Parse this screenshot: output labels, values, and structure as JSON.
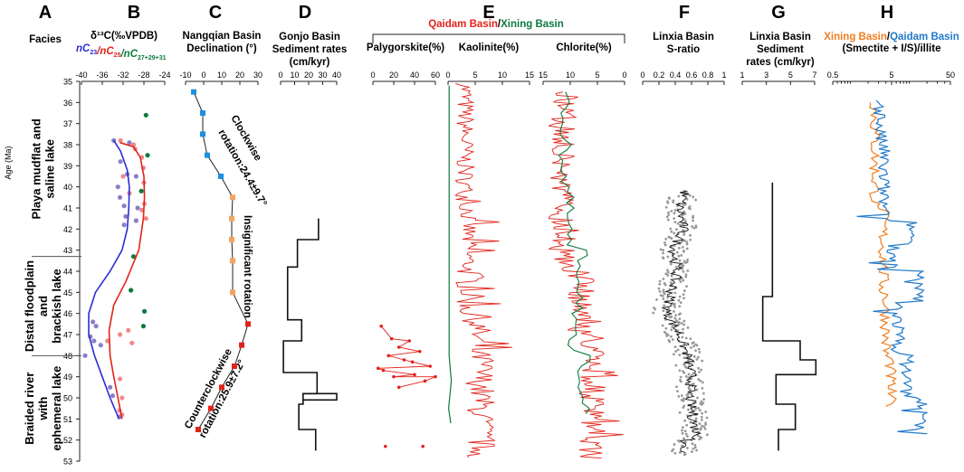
{
  "colors": {
    "blue": "#2b2bd6",
    "red": "#e2231a",
    "green": "#0c7a3c",
    "orange": "#f07d1e",
    "lightblue": "#1f78c8",
    "purple": "#8b7ec8",
    "pink": "#ef8a8a",
    "sqblue": "#1e90e0",
    "sqorange": "#f4a460",
    "sqred": "#e2231a",
    "gray": "#999999"
  },
  "panel_letters": [
    "A",
    "B",
    "C",
    "D",
    "E",
    "F",
    "G",
    "H"
  ],
  "age_axis": {
    "label": "Age (Ma)",
    "min": 35,
    "max": 53,
    "ticks": [
      35,
      36,
      37,
      38,
      39,
      40,
      41,
      42,
      43,
      44,
      45,
      46,
      47,
      48,
      49,
      50,
      51,
      52,
      53
    ]
  },
  "facies": {
    "title": "Facies",
    "zones": [
      {
        "top": 35,
        "bottom": 43.3,
        "lines": [
          "Playa mudflat and",
          "saline lake"
        ]
      },
      {
        "top": 43.3,
        "bottom": 48,
        "lines": [
          "Distal floodplain",
          "and",
          "brackish lake"
        ]
      },
      {
        "top": 48,
        "bottom": 53,
        "lines": [
          "Braided river",
          "with",
          "ephemeral lake"
        ]
      }
    ]
  },
  "chart_data": [
    {
      "id": "B",
      "type": "scatter",
      "title": "δ¹³C(‰VPDB)",
      "legend": [
        {
          "text": "nC",
          "sub": "23",
          "color": "blue"
        },
        {
          "text": "/nC",
          "sub": "25",
          "color": "red"
        },
        {
          "text": "/nC",
          "sub": "27+29+31",
          "color": "green"
        }
      ],
      "xlim": [
        -40,
        -24
      ],
      "xticks": [
        -40,
        -36,
        -32,
        -28,
        -24
      ],
      "series": [
        {
          "name": "nC23 points",
          "color": "purple",
          "points": [
            [
              -33.8,
              37.8
            ],
            [
              -30.8,
              37.9
            ],
            [
              -32.5,
              38.8
            ],
            [
              -31.2,
              39.4
            ],
            [
              -29.5,
              39.5
            ],
            [
              -33,
              40
            ],
            [
              -32.6,
              40.5
            ],
            [
              -31.8,
              40.9
            ],
            [
              -29.2,
              41
            ],
            [
              -31.5,
              41.4
            ],
            [
              -29.5,
              41.6
            ],
            [
              -31.8,
              41.8
            ],
            [
              -37.8,
              46.4
            ],
            [
              -37.2,
              46.6
            ],
            [
              -38.3,
              47.1
            ],
            [
              -37.6,
              47.3
            ],
            [
              -36.3,
              47.5
            ],
            [
              -39.3,
              48
            ],
            [
              -34.5,
              49.5
            ],
            [
              -34,
              49.9
            ],
            [
              -32.7,
              50.9
            ]
          ]
        },
        {
          "name": "nC25 points",
          "color": "pink",
          "points": [
            [
              -32.5,
              37.8
            ],
            [
              -30,
              38
            ],
            [
              -29.7,
              38.2
            ],
            [
              -28.4,
              38.6
            ],
            [
              -28.1,
              39.1
            ],
            [
              -32,
              39.5
            ],
            [
              -28,
              39.8
            ],
            [
              -30.8,
              40.3
            ],
            [
              -27.9,
              40.8
            ],
            [
              -28.4,
              41.1
            ],
            [
              -27.6,
              41.5
            ],
            [
              -31,
              46.8
            ],
            [
              -32.6,
              47
            ],
            [
              -35,
              47.3
            ],
            [
              -30.3,
              47.4
            ],
            [
              -32.6,
              49.1
            ],
            [
              -32.2,
              50
            ],
            [
              -32.7,
              50.6
            ],
            [
              -32.2,
              50.8
            ]
          ]
        },
        {
          "name": "nC27+29+31 points",
          "color": "green",
          "points": [
            [
              -27.6,
              36.6
            ],
            [
              -27.3,
              38.5
            ],
            [
              -28.5,
              40.2
            ],
            [
              -30,
              43.3
            ],
            [
              -30.5,
              44.9
            ],
            [
              -27.9,
              45.9
            ],
            [
              -28.1,
              46.6
            ]
          ]
        },
        {
          "name": "nC23 trend",
          "color": "blue",
          "line": [
            [
              -33.8,
              37.8
            ],
            [
              -32.5,
              38.3
            ],
            [
              -31.2,
              39.2
            ],
            [
              -30.8,
              40
            ],
            [
              -30.9,
              41
            ],
            [
              -31.2,
              42
            ],
            [
              -32.2,
              43
            ],
            [
              -34.5,
              44
            ],
            [
              -37.3,
              45
            ],
            [
              -38.6,
              46
            ],
            [
              -38.6,
              47
            ],
            [
              -37.5,
              48
            ],
            [
              -36,
              49
            ],
            [
              -34.5,
              50
            ],
            [
              -32.8,
              51
            ]
          ]
        },
        {
          "name": "nC25 trend",
          "color": "red",
          "line": [
            [
              -32.6,
              37.9
            ],
            [
              -30,
              38.1
            ],
            [
              -28.7,
              38.6
            ],
            [
              -28,
              39.5
            ],
            [
              -27.9,
              40.5
            ],
            [
              -28.1,
              41.5
            ],
            [
              -29,
              43
            ],
            [
              -31.5,
              44.5
            ],
            [
              -33.8,
              45.6
            ],
            [
              -34.7,
              46.8
            ],
            [
              -34.5,
              48
            ],
            [
              -33.8,
              49
            ],
            [
              -33,
              50
            ],
            [
              -32.2,
              51
            ]
          ]
        }
      ]
    },
    {
      "id": "C",
      "type": "line",
      "title_lines": [
        "Nangqian Basin",
        "Declination (°)"
      ],
      "xlim": [
        -10,
        30
      ],
      "xticks": [
        -10,
        0,
        10,
        20,
        30
      ],
      "annotations": [
        "Clockwise",
        "rotation:24.4±9.7°",
        "Insignificant rotation",
        "Counterclockwise",
        "rotation:25.9±7.2°"
      ],
      "points": [
        [
          -5.5,
          35.5,
          "sqblue"
        ],
        [
          -0.5,
          36.5,
          "sqblue"
        ],
        [
          -0.5,
          37.5,
          "sqblue"
        ],
        [
          2,
          38.5,
          "sqblue"
        ],
        [
          9.5,
          39.5,
          "sqblue"
        ],
        [
          16,
          40.5,
          "sqorange"
        ],
        [
          15.5,
          41.5,
          "sqorange"
        ],
        [
          15.5,
          42.5,
          "sqorange"
        ],
        [
          16,
          43.5,
          "sqorange"
        ],
        [
          16,
          45,
          "sqorange"
        ],
        [
          24.5,
          46.5,
          "sqred"
        ],
        [
          21,
          47.5,
          "sqred"
        ],
        [
          17,
          48.5,
          "sqred"
        ],
        [
          10,
          49.5,
          "sqred"
        ],
        [
          4,
          50.5,
          "sqred"
        ],
        [
          -3,
          51.5,
          "sqred"
        ]
      ]
    },
    {
      "id": "D",
      "type": "step",
      "title_lines": [
        "Gonjo Basin",
        "Sediment rates",
        "(cm/kyr)"
      ],
      "xlim": [
        0,
        40
      ],
      "xticks": [
        0,
        10,
        20,
        30,
        40
      ],
      "steps": [
        [
          41.5,
          42.5,
          27
        ],
        [
          42.5,
          43.8,
          12
        ],
        [
          43.8,
          46.3,
          5
        ],
        [
          46.3,
          47.3,
          15
        ],
        [
          47.3,
          48.8,
          2
        ],
        [
          48.8,
          49.8,
          26
        ],
        [
          49.8,
          50.3,
          16
        ],
        [
          50.3,
          51.5,
          13
        ],
        [
          51.5,
          52.5,
          25
        ]
      ],
      "spike": {
        "x": 40,
        "y_top": 49.8,
        "y_bottom": 50.1
      }
    },
    {
      "id": "E",
      "type": "line",
      "title": "Qaidam Basin/Xining Basin",
      "palygorskite": {
        "title": "Palygorskite(%)",
        "xlim": [
          0,
          60
        ],
        "xticks": [
          0,
          20,
          40,
          60
        ],
        "points": [
          [
            8,
            46.6
          ],
          [
            18,
            47.2
          ],
          [
            35,
            47.3
          ],
          [
            25,
            47.6
          ],
          [
            45,
            47.8
          ],
          [
            15,
            48
          ],
          [
            30,
            48.2
          ],
          [
            55,
            48.5
          ],
          [
            10,
            48.7
          ],
          [
            40,
            48.9
          ],
          [
            20,
            49
          ],
          [
            50,
            49.2
          ],
          [
            60,
            49
          ],
          [
            5,
            48.6
          ],
          [
            25,
            49.5
          ],
          [
            38,
            48.3
          ],
          [
            12,
            52.3
          ],
          [
            48,
            52.3
          ]
        ]
      },
      "kaolinite": {
        "title": "Kaolinite(%)",
        "xlim": [
          0,
          15
        ],
        "xticks": [
          0,
          5,
          10,
          15
        ],
        "xi_flat": 0.2
      },
      "chlorite": {
        "title": "Chlorite(%)",
        "xlim": [
          15,
          0
        ],
        "xticks": [
          15,
          10,
          5,
          0
        ]
      }
    },
    {
      "id": "F",
      "type": "scatter",
      "title_lines": [
        "Linxia Basin",
        "S-ratio"
      ],
      "xlim": [
        0,
        1
      ],
      "xticks": [
        0,
        0.2,
        0.4,
        0.6,
        0.8,
        1
      ],
      "xticklabels": [
        "0",
        "0.2",
        "0.4",
        "0.6",
        "0.8",
        "1"
      ],
      "trend": [
        [
          0.52,
          40.2
        ],
        [
          0.45,
          41
        ],
        [
          0.5,
          42
        ],
        [
          0.38,
          43
        ],
        [
          0.42,
          44
        ],
        [
          0.35,
          45
        ],
        [
          0.3,
          46
        ],
        [
          0.45,
          47
        ],
        [
          0.55,
          48
        ],
        [
          0.6,
          49
        ],
        [
          0.58,
          50
        ],
        [
          0.62,
          51
        ],
        [
          0.68,
          52
        ]
      ]
    },
    {
      "id": "G",
      "type": "step",
      "title_lines": [
        "Linxia Basin",
        "Sediment",
        "rates (cm/kyr)"
      ],
      "xlim": [
        1,
        7
      ],
      "xticks": [
        1,
        3,
        5,
        7
      ],
      "steps": [
        [
          39.8,
          45.2,
          3.5
        ],
        [
          45.2,
          47.3,
          2.7
        ],
        [
          47.3,
          48.2,
          5.8
        ],
        [
          48.2,
          48.9,
          7.1
        ],
        [
          48.9,
          50.3,
          3.8
        ],
        [
          50.3,
          51.5,
          5.4
        ],
        [
          51.5,
          52.5,
          4.0
        ]
      ]
    },
    {
      "id": "H",
      "type": "line",
      "title_parts": [
        {
          "text": "Xining Basin",
          "color": "orange"
        },
        {
          "text": "/",
          "color": "black"
        },
        {
          "text": "Qaidam Basin",
          "color": "lightblue"
        }
      ],
      "subtitle": "(Smectite + I/S)/illite",
      "xscale": "log",
      "xlim": [
        0.5,
        50
      ],
      "xticks": [
        0.5,
        5,
        50
      ]
    }
  ]
}
